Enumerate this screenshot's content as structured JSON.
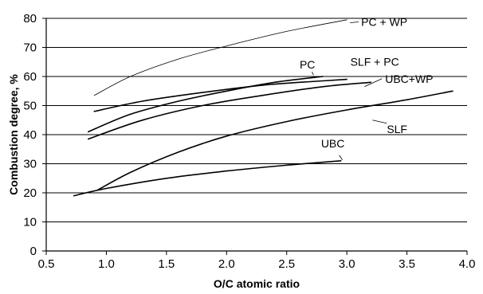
{
  "chart_data": {
    "type": "line",
    "title": "",
    "xlabel": "O/C atomic ratio",
    "ylabel": "Combustion degree, %",
    "xlim": [
      0.5,
      4.0
    ],
    "ylim": [
      0,
      80
    ],
    "x_ticks": [
      "0.5",
      "1.0",
      "1.5",
      "2.0",
      "2.5",
      "3.0",
      "3.5",
      "4.0"
    ],
    "y_ticks": [
      "0",
      "10",
      "20",
      "30",
      "40",
      "50",
      "60",
      "70",
      "80"
    ],
    "grid": "horizontal",
    "legend": "inline labels",
    "series": [
      {
        "name": "PC + WP",
        "x": [
          0.9,
          1.2,
          1.6,
          2.0,
          2.5,
          3.0
        ],
        "y": [
          53.5,
          60,
          66,
          70.5,
          75.5,
          79.5
        ],
        "label_anchor": [
          3.0,
          78.5
        ]
      },
      {
        "name": "PC",
        "x": [
          0.85,
          1.2,
          1.6,
          2.0,
          2.4,
          2.8
        ],
        "y": [
          41,
          47,
          51.5,
          55,
          58,
          60
        ],
        "label_anchor": [
          2.75,
          60.5
        ]
      },
      {
        "name": "SLF + PC",
        "x": [
          0.9,
          1.3,
          1.8,
          2.3,
          2.8,
          3.0
        ],
        "y": [
          48,
          51.5,
          54.5,
          57,
          58.5,
          59
        ],
        "label_anchor": [
          2.95,
          59
        ]
      },
      {
        "name": "UBC+WP",
        "x": [
          0.85,
          1.3,
          1.8,
          2.3,
          2.8,
          3.2
        ],
        "y": [
          38.5,
          45,
          50,
          53.5,
          56.5,
          58
        ],
        "label_anchor": [
          3.12,
          56.5
        ]
      },
      {
        "name": "SLF",
        "x": [
          0.93,
          1.2,
          1.6,
          2.0,
          2.5,
          3.0,
          3.5,
          3.88
        ],
        "y": [
          21,
          27,
          34,
          39.5,
          44.5,
          48.5,
          52,
          55
        ],
        "label_anchor": [
          3.2,
          45
        ]
      },
      {
        "name": "UBC",
        "x": [
          0.73,
          1.0,
          1.5,
          2.0,
          2.5,
          2.95
        ],
        "y": [
          19,
          21.5,
          25,
          27.5,
          29.5,
          31
        ],
        "label_anchor": [
          2.95,
          31.3
        ]
      }
    ],
    "annotations": [
      {
        "text": "PC + WP",
        "series": "PC + WP"
      },
      {
        "text": "PC",
        "series": "PC"
      },
      {
        "text": "SLF + PC",
        "series": "SLF + PC"
      },
      {
        "text": "UBC+WP",
        "series": "UBC+WP"
      },
      {
        "text": "SLF",
        "series": "SLF"
      },
      {
        "text": "UBC",
        "series": "UBC"
      }
    ]
  }
}
